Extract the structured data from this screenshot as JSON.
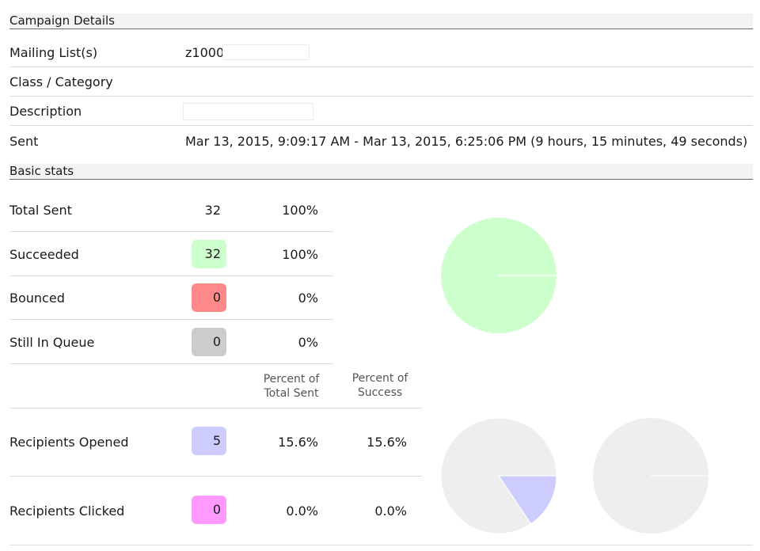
{
  "campaign": {
    "title": "Campaign Details",
    "mailing_list": {
      "label": "Mailing List(s)",
      "value": "z1000",
      "input_value": ""
    },
    "class_category": {
      "label": "Class / Category",
      "value": ""
    },
    "description": {
      "label": "Description",
      "input_value": ""
    },
    "sent": {
      "label": "Sent",
      "value": "Mar 13, 2015, 9:09:17 AM - Mar 13, 2015, 6:25:06 PM (9 hours, 15 minutes, 49 seconds)"
    }
  },
  "basic_stats": {
    "title": "Basic stats",
    "rows": [
      {
        "label": "Total Sent",
        "count": "32",
        "percent": "100%",
        "badge_color": ""
      },
      {
        "label": "Succeeded",
        "count": "32",
        "percent": "100%",
        "badge_color": "#ccffcc"
      },
      {
        "label": "Bounced",
        "count": "0",
        "percent": "0%",
        "badge_color": "#ff8888"
      },
      {
        "label": "Still In Queue",
        "count": "0",
        "percent": "0%",
        "badge_color": "#cccccc"
      }
    ],
    "col_headers": {
      "percent_total": [
        "Percent of",
        "Total Sent"
      ],
      "percent_success": [
        "Percent of",
        "Success"
      ]
    },
    "engagement_rows": [
      {
        "label": "Recipients Opened",
        "count": "5",
        "pct_total": "15.6%",
        "pct_success": "15.6%",
        "badge_color": "#ccccff"
      },
      {
        "label": "Recipients Clicked",
        "count": "0",
        "pct_total": "0.0%",
        "pct_success": "0.0%",
        "badge_color": "#ff99ff"
      }
    ]
  },
  "chart_data": [
    {
      "type": "pie",
      "title": "",
      "slices": [
        {
          "name": "Succeeded",
          "value": 32,
          "color": "#ccffcc"
        },
        {
          "name": "Bounced",
          "value": 0,
          "color": "#ff8888"
        },
        {
          "name": "Still In Queue",
          "value": 0,
          "color": "#cccccc"
        }
      ]
    },
    {
      "type": "pie",
      "title": "",
      "slices": [
        {
          "name": "Recipients Opened",
          "value": 5,
          "color": "#ccccff"
        },
        {
          "name": "Not Opened",
          "value": 27,
          "color": "#eeeeee"
        }
      ]
    },
    {
      "type": "pie",
      "title": "",
      "slices": [
        {
          "name": "Recipients Clicked",
          "value": 0,
          "color": "#ff99ff"
        },
        {
          "name": "Not Clicked",
          "value": 32,
          "color": "#eeeeee"
        }
      ]
    }
  ]
}
